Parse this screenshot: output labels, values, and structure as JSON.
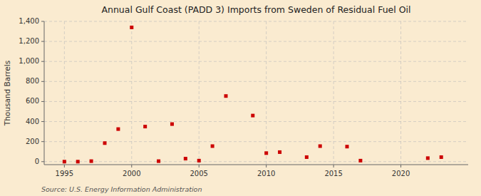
{
  "chart_data": {
    "type": "scatter",
    "title": "Annual Gulf Coast (PADD 3) Imports from Sweden of Residual Fuel Oil",
    "ylabel": "Thousand Barrels",
    "source": "Source: U.S. Energy Information Administration",
    "x": [
      1995,
      1996,
      1997,
      1998,
      1999,
      2000,
      2001,
      2002,
      2003,
      2004,
      2005,
      2006,
      2007,
      2009,
      2010,
      2011,
      2013,
      2014,
      2016,
      2017,
      2022,
      2023
    ],
    "values": [
      0,
      0,
      5,
      185,
      325,
      1340,
      350,
      5,
      375,
      30,
      10,
      155,
      655,
      460,
      85,
      95,
      45,
      155,
      150,
      10,
      35,
      45
    ],
    "color": "#cc0000",
    "marker": "square",
    "xlim": [
      1993.5,
      2025
    ],
    "ylim": [
      -30,
      1400
    ],
    "xticks": [
      1995,
      2000,
      2005,
      2010,
      2015,
      2020
    ],
    "yticks": [
      0,
      200,
      400,
      600,
      800,
      {
        "value": 1000,
        "label": "1,000"
      },
      {
        "value": 1200,
        "label": "1,200"
      },
      {
        "value": 1400,
        "label": "1,400"
      }
    ],
    "grid": true
  }
}
